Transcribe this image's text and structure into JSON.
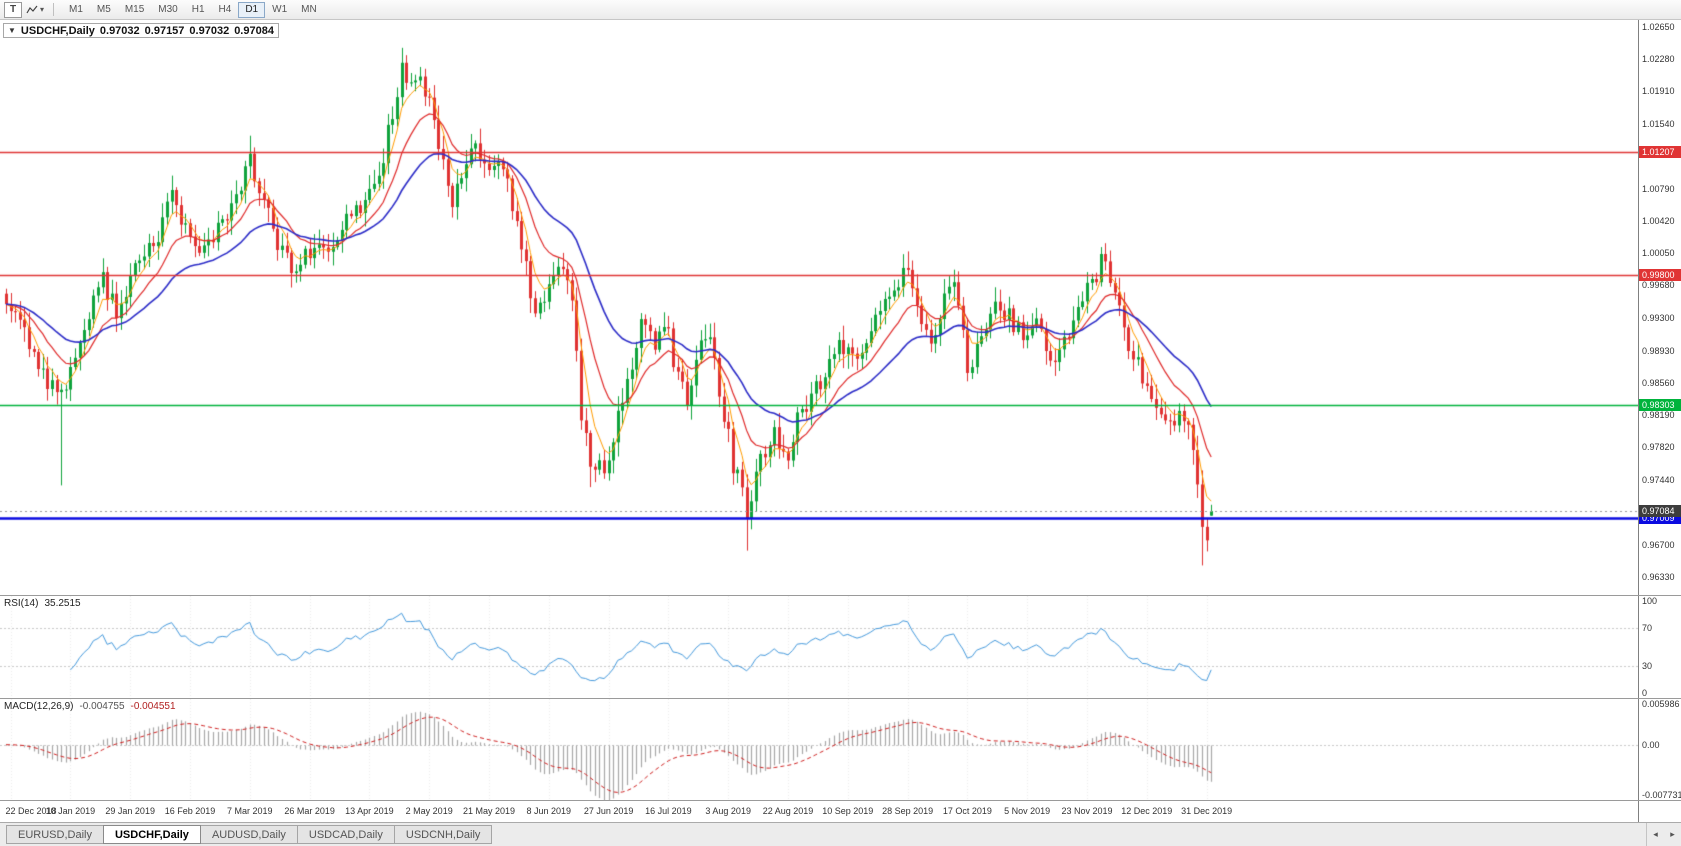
{
  "toolbar": {
    "t_button": "T",
    "chevron": "▾",
    "timeframes": [
      "M1",
      "M5",
      "M15",
      "M30",
      "H1",
      "H4",
      "D1",
      "W1",
      "MN"
    ],
    "active_timeframe": "D1"
  },
  "chart": {
    "collapse_icon": "▼",
    "symbol": "USDCHF,Daily",
    "open": "0.97032",
    "high": "0.97157",
    "low": "0.97032",
    "close": "0.97084",
    "price_axis_ticks": [
      "1.02650",
      "1.02280",
      "1.01910",
      "1.01540",
      "1.00790",
      "1.00420",
      "1.00050",
      "0.99680",
      "0.99300",
      "0.98930",
      "0.98560",
      "0.98190",
      "0.97820",
      "0.97440",
      "0.96700",
      "0.96330"
    ],
    "levels": [
      {
        "label": "1.01207",
        "value": 1.01207,
        "color": "#e03434",
        "chip": "#e03434",
        "width": 1.5,
        "style": "solid"
      },
      {
        "label": "0.99800",
        "value": 0.998,
        "color": "#e03434",
        "chip": "#e03434",
        "width": 1.5,
        "style": "solid"
      },
      {
        "label": "0.98303",
        "value": 0.98303,
        "color": "#00b33c",
        "chip": "#00b33c",
        "width": 1.5,
        "style": "solid"
      },
      {
        "label": "0.97009",
        "value": 0.97009,
        "color": "#0a0ae0",
        "chip": "#0a0ae0",
        "width": 2.5,
        "style": "solid"
      },
      {
        "label": "0.97084",
        "value": 0.97084,
        "color": "#9a9a9a",
        "chip": "#3d3d3d",
        "width": 1,
        "style": "dotted"
      }
    ],
    "x_labels": [
      "22 Dec 2018",
      "10 Jan 2019",
      "29 Jan 2019",
      "16 Feb 2019",
      "7 Mar 2019",
      "26 Mar 2019",
      "13 Apr 2019",
      "2 May 2019",
      "21 May 2019",
      "8 Jun 2019",
      "27 Jun 2019",
      "16 Jul 2019",
      "3 Aug 2019",
      "22 Aug 2019",
      "10 Sep 2019",
      "28 Sep 2019",
      "17 Oct 2019",
      "5 Nov 2019",
      "23 Nov 2019",
      "12 Dec 2019",
      "31 Dec 2019"
    ]
  },
  "rsi": {
    "name": "RSI(14)",
    "value": "35.2515",
    "period": 14,
    "line_color": "#459add",
    "guides": [
      70,
      30
    ],
    "axis_ticks": [
      {
        "label": "100",
        "v": 100
      },
      {
        "label": "70",
        "v": 70
      },
      {
        "label": "30",
        "v": 30
      },
      {
        "label": "0",
        "v": 0
      }
    ]
  },
  "macd": {
    "name": "MACD(12,26,9)",
    "value_main": "-0.004755",
    "value_signal": "-0.004551",
    "fast": 12,
    "slow": 26,
    "signal": 9,
    "hist_color": "#a8a8a8",
    "signal_color": "#d02020",
    "range": [
      -0.008,
      0.0066
    ],
    "axis_ticks": [
      {
        "label": "0.005986",
        "v": 0.005986
      },
      {
        "label": "0.00",
        "v": 0
      },
      {
        "label": "-0.007731",
        "v": -0.007731
      }
    ]
  },
  "tabs": {
    "items": [
      "EURUSD,Daily",
      "USDCHF,Daily",
      "AUDUSD,Daily",
      "USDCAD,Daily",
      "USDCNH,Daily"
    ],
    "active_index": 1,
    "scroll_left": "◂",
    "scroll_right": "▸"
  },
  "chart_data": {
    "type": "candlestick",
    "symbol": "USDCHF",
    "timeframe": "Daily",
    "candles_total": 263,
    "y_range": [
      0.9612,
      1.0273
    ],
    "x_label_start_index": 1,
    "x_label_step": 13,
    "up_color": "#0fa33c",
    "down_color": "#e03232",
    "noise_seed": 77,
    "noise_amp": 0.0024,
    "last_candle": {
      "o": 0.97032,
      "h": 0.97157,
      "l": 0.97032,
      "c": 0.97084
    },
    "ma": [
      {
        "period": 5,
        "color": "#ff9c00",
        "width": 1
      },
      {
        "period": 13,
        "color": "#e02b2b",
        "width": 1.2
      },
      {
        "period": 30,
        "color": "#2d2dc8",
        "width": 1.6
      }
    ],
    "price_path": [
      [
        0,
        0.9952
      ],
      [
        3,
        0.9928
      ],
      [
        5,
        0.9902
      ],
      [
        8,
        0.9868
      ],
      [
        11,
        0.9846
      ],
      [
        12,
        0.984
      ],
      [
        14,
        0.9872
      ],
      [
        18,
        0.9932
      ],
      [
        21,
        0.9974
      ],
      [
        24,
        0.9941
      ],
      [
        28,
        0.9986
      ],
      [
        32,
        1.0012
      ],
      [
        36,
        1.0076
      ],
      [
        39,
        1.0031
      ],
      [
        42,
        1.0001
      ],
      [
        46,
        1.0036
      ],
      [
        50,
        1.0062
      ],
      [
        53,
        1.0116
      ],
      [
        56,
        1.0061
      ],
      [
        60,
        1.0002
      ],
      [
        63,
        0.9986
      ],
      [
        67,
        1.0012
      ],
      [
        70,
        1.0001
      ],
      [
        74,
        1.0041
      ],
      [
        78,
        1.0066
      ],
      [
        81,
        1.0092
      ],
      [
        84,
        1.017
      ],
      [
        86,
        1.0218
      ],
      [
        88,
        1.0192
      ],
      [
        90,
        1.0208
      ],
      [
        92,
        1.0172
      ],
      [
        95,
        1.0102
      ],
      [
        97,
        1.0062
      ],
      [
        100,
        1.0108
      ],
      [
        102,
        1.0138
      ],
      [
        105,
        1.0092
      ],
      [
        108,
        1.0108
      ],
      [
        110,
        1.0052
      ],
      [
        113,
        0.9992
      ],
      [
        115,
        0.9932
      ],
      [
        118,
        0.9968
      ],
      [
        121,
        0.9998
      ],
      [
        123,
        0.9942
      ],
      [
        125,
        0.9822
      ],
      [
        127,
        0.9752
      ],
      [
        130,
        0.9762
      ],
      [
        132,
        0.9792
      ],
      [
        135,
        0.9862
      ],
      [
        138,
        0.9918
      ],
      [
        141,
        0.9902
      ],
      [
        143,
        0.993
      ],
      [
        146,
        0.9862
      ],
      [
        148,
        0.9832
      ],
      [
        151,
        0.9898
      ],
      [
        153,
        0.9908
      ],
      [
        156,
        0.9822
      ],
      [
        158,
        0.9762
      ],
      [
        160,
        0.9732
      ],
      [
        161,
        0.9702
      ],
      [
        164,
        0.9772
      ],
      [
        167,
        0.98
      ],
      [
        170,
        0.9762
      ],
      [
        172,
        0.982
      ],
      [
        175,
        0.984
      ],
      [
        178,
        0.9868
      ],
      [
        181,
        0.9898
      ],
      [
        184,
        0.9882
      ],
      [
        187,
        0.9902
      ],
      [
        190,
        0.9938
      ],
      [
        193,
        0.9968
      ],
      [
        196,
        0.9994
      ],
      [
        199,
        0.9932
      ],
      [
        201,
        0.9892
      ],
      [
        204,
        0.9958
      ],
      [
        206,
        0.9974
      ],
      [
        209,
        0.9872
      ],
      [
        212,
        0.9898
      ],
      [
        215,
        0.9938
      ],
      [
        218,
        0.993
      ],
      [
        221,
        0.9912
      ],
      [
        224,
        0.993
      ],
      [
        227,
        0.9872
      ],
      [
        230,
        0.99
      ],
      [
        233,
        0.9948
      ],
      [
        236,
        0.9968
      ],
      [
        238,
        0.9998
      ],
      [
        241,
        0.9958
      ],
      [
        244,
        0.99
      ],
      [
        247,
        0.9862
      ],
      [
        250,
        0.9832
      ],
      [
        253,
        0.9812
      ],
      [
        256,
        0.982
      ],
      [
        258,
        0.9782
      ],
      [
        260,
        0.9692
      ],
      [
        261,
        0.9672
      ],
      [
        262,
        0.9708
      ]
    ],
    "wick_spikes": [
      {
        "i": 12,
        "low": 0.9738
      },
      {
        "i": 53,
        "high": 1.014
      },
      {
        "i": 86,
        "high": 1.0241
      },
      {
        "i": 121,
        "high": 1.0004
      },
      {
        "i": 127,
        "low": 0.9736
      },
      {
        "i": 161,
        "low": 0.9663
      },
      {
        "i": 196,
        "high": 1.0007
      },
      {
        "i": 206,
        "high": 0.9986
      },
      {
        "i": 238,
        "high": 1.0006
      },
      {
        "i": 260,
        "low": 0.9646
      }
    ]
  }
}
